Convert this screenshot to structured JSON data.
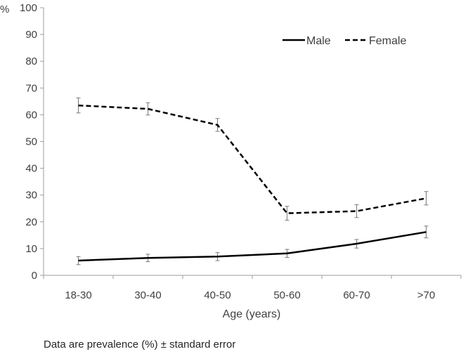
{
  "chart_data": {
    "type": "line",
    "categories": [
      "18-30",
      "30-40",
      "40-50",
      "50-60",
      "60-70",
      ">70"
    ],
    "series": [
      {
        "name": "Male",
        "style": "solid",
        "values": [
          5.5,
          6.5,
          7.0,
          8.2,
          11.8,
          16.2
        ],
        "errors": [
          1.5,
          1.4,
          1.5,
          1.5,
          1.6,
          2.2
        ]
      },
      {
        "name": "Female",
        "style": "dashed",
        "values": [
          63.5,
          62.2,
          56.2,
          23.2,
          24.0,
          28.8
        ],
        "errors": [
          2.8,
          2.3,
          2.4,
          2.6,
          2.4,
          2.5
        ]
      }
    ],
    "ylim": [
      0,
      100
    ],
    "yticks": [
      0,
      10,
      20,
      30,
      40,
      50,
      60,
      70,
      80,
      90,
      100
    ],
    "ylabel": "%",
    "xlabel": "Age (years)",
    "legend_position": "top-right",
    "grid": false
  },
  "footnote": "Data are prevalence (%) ± standard error"
}
